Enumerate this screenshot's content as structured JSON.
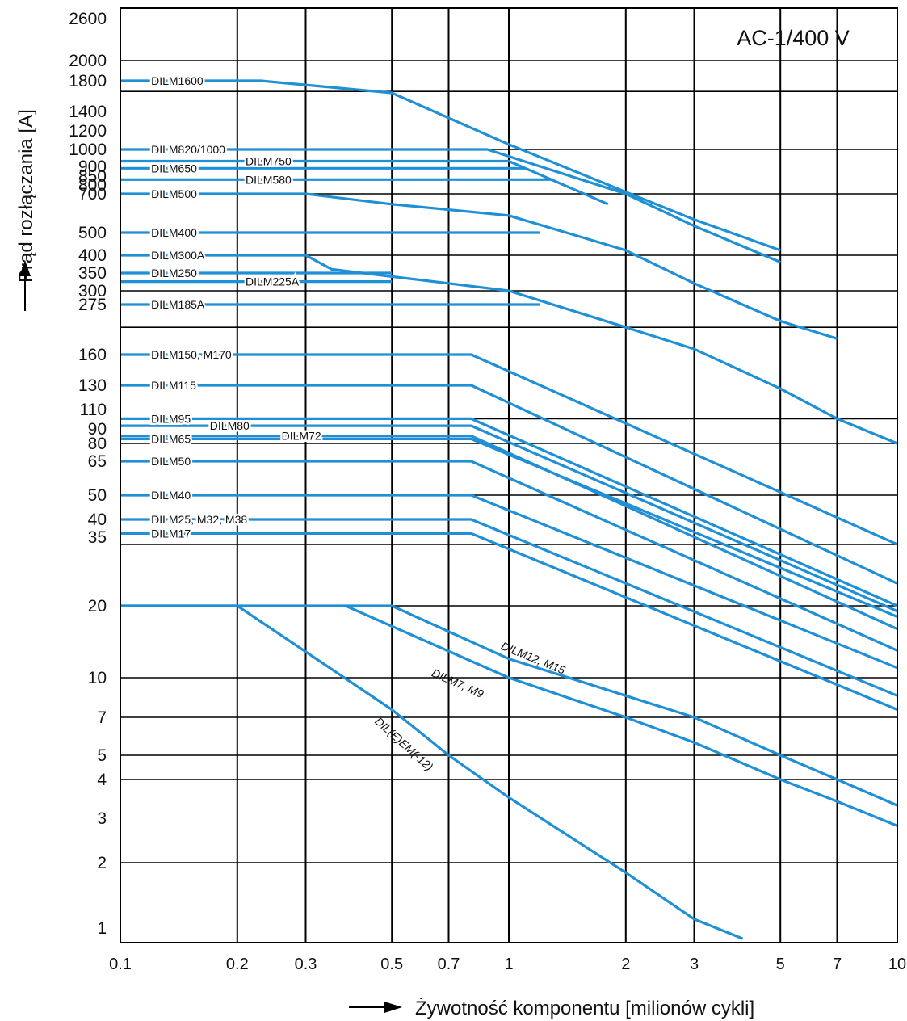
{
  "chart_data": {
    "type": "line",
    "title": "AC-1/400 V",
    "xlabel": "Żywotność komponentu [milionów cykli]",
    "ylabel": "Prąd rozłączania [A]",
    "x_scale": "log",
    "xlim": [
      0.1,
      10
    ],
    "x_ticks": [
      {
        "v": 0.1,
        "label": "0.1"
      },
      {
        "v": 0.2,
        "label": "0.2"
      },
      {
        "v": 0.3,
        "label": "0.3"
      },
      {
        "v": 0.5,
        "label": "0.5"
      },
      {
        "v": 0.7,
        "label": "0.7"
      },
      {
        "v": 1,
        "label": "1"
      },
      {
        "v": 2,
        "label": "2"
      },
      {
        "v": 3,
        "label": "3"
      },
      {
        "v": 5,
        "label": "5"
      },
      {
        "v": 7,
        "label": "7"
      },
      {
        "v": 10,
        "label": "10"
      }
    ],
    "y_ticks": [
      "1",
      "2",
      "3",
      "4",
      "5",
      "7",
      "10",
      "20",
      "35",
      "40",
      "50",
      "65",
      "80",
      "90",
      "110",
      "130",
      "160",
      "275",
      "300",
      "350",
      "400",
      "500",
      "700",
      "800",
      "850",
      "900",
      "1000",
      "1200",
      "1400",
      "1800",
      "2000",
      "2600"
    ],
    "grid": true,
    "colors": {
      "series": "#1f8fd6",
      "grid": "#000000",
      "text": "#111111"
    },
    "series": [
      {
        "name": "DILM1600",
        "x": [
          0.1,
          0.23,
          0.5,
          1,
          2,
          3,
          5
        ],
        "y": [
          1800,
          1800,
          1630,
          1050,
          720,
          560,
          420
        ],
        "label_x": 0.12
      },
      {
        "name": "DILM820/1000",
        "x": [
          0.1,
          0.88,
          2,
          3,
          5
        ],
        "y": [
          1000,
          1000,
          700,
          530,
          380
        ],
        "label_x": 0.12
      },
      {
        "name": "DILM750",
        "x": [
          0.1,
          1,
          1.8
        ],
        "y": [
          930,
          930,
          640
        ],
        "label_x": 0.21
      },
      {
        "name": "DILM650",
        "x": [
          0.1,
          1.1
        ],
        "y": [
          890,
          890
        ],
        "label_x": 0.12
      },
      {
        "name": "DILM580",
        "x": [
          0.1,
          1.3
        ],
        "y": [
          830,
          830
        ],
        "label_x": 0.21
      },
      {
        "name": "DILM500",
        "x": [
          0.1,
          0.3,
          0.5,
          1,
          2,
          3,
          5,
          7
        ],
        "y": [
          700,
          700,
          640,
          580,
          420,
          320,
          230,
          190
        ],
        "label_x": 0.12
      },
      {
        "name": "DILM400",
        "x": [
          0.1,
          1.2
        ],
        "y": [
          500,
          500
        ],
        "label_x": 0.12
      },
      {
        "name": "DILM300A",
        "x": [
          0.1,
          0.3,
          0.35,
          0.7,
          1,
          2,
          3,
          5,
          7,
          10
        ],
        "y": [
          400,
          400,
          360,
          320,
          300,
          215,
          170,
          127,
          100,
          80
        ],
        "label_x": 0.12
      },
      {
        "name": "DILM250",
        "x": [
          0.1,
          0.5
        ],
        "y": [
          350,
          350
        ],
        "label_x": 0.12
      },
      {
        "name": "DILM225A",
        "x": [
          0.1,
          0.5
        ],
        "y": [
          325,
          325
        ],
        "label_x": 0.21
      },
      {
        "name": "DILM185A",
        "x": [
          0.1,
          1.2
        ],
        "y": [
          275,
          275
        ],
        "label_x": 0.12
      },
      {
        "name": "DILM150, M170",
        "x": [
          0.1,
          0.8,
          10
        ],
        "y": [
          160,
          160,
          33
        ],
        "label_x": 0.12
      },
      {
        "name": "DILM115",
        "x": [
          0.1,
          0.8,
          10
        ],
        "y": [
          130,
          130,
          24
        ],
        "label_x": 0.12
      },
      {
        "name": "DILM95",
        "x": [
          0.1,
          0.8,
          10
        ],
        "y": [
          100,
          100,
          20
        ],
        "label_x": 0.12
      },
      {
        "name": "DILM80",
        "x": [
          0.1,
          0.8,
          10
        ],
        "y": [
          93,
          93,
          19
        ],
        "label_x": 0.17
      },
      {
        "name": "DILM72",
        "x": [
          0.1,
          0.8,
          10
        ],
        "y": [
          85,
          85,
          16
        ],
        "label_x": 0.26
      },
      {
        "name": "DILM65",
        "x": [
          0.1,
          0.8,
          10
        ],
        "y": [
          83,
          83,
          18
        ],
        "label_x": 0.12
      },
      {
        "name": "DILM50",
        "x": [
          0.1,
          0.8,
          10
        ],
        "y": [
          65,
          65,
          13
        ],
        "label_x": 0.12
      },
      {
        "name": "DILM40",
        "x": [
          0.1,
          0.8,
          10
        ],
        "y": [
          50,
          50,
          11
        ],
        "label_x": 0.12
      },
      {
        "name": "DILM25, M32, M38",
        "x": [
          0.1,
          0.8,
          10
        ],
        "y": [
          40,
          40,
          8.5
        ],
        "label_x": 0.12
      },
      {
        "name": "DILM17",
        "x": [
          0.1,
          0.8,
          10
        ],
        "y": [
          36,
          36,
          7.5
        ],
        "label_x": 0.12
      },
      {
        "name": "DILM12, M15",
        "x": [
          0.1,
          0.5,
          1,
          2,
          3,
          5,
          7,
          10
        ],
        "y": [
          20,
          20,
          12,
          8.5,
          7,
          5,
          4,
          3.3
        ],
        "label_x": 0.95,
        "label_y": 13.2
      },
      {
        "name": "DILM7, M9",
        "x": [
          0.38,
          1,
          2,
          3,
          5,
          7,
          10
        ],
        "y": [
          20,
          10,
          7,
          5.6,
          4,
          3.4,
          2.8
        ],
        "label_x": 0.63,
        "label_y": 10.2
      },
      {
        "name": "DIL(E)EM(-12)",
        "x": [
          0.1,
          0.2,
          0.5,
          0.7,
          1,
          2,
          3,
          4
        ],
        "y": [
          20,
          20,
          7.5,
          5,
          3.5,
          1.8,
          1.1,
          0.85
        ],
        "label_x": 0.45,
        "label_y": 6.7
      }
    ]
  },
  "axis": {
    "x_title": "Żywotność komponentu [milionów cykli]",
    "y_title": "Prąd rozłączania [A]",
    "box_title": "AC-1/400 V"
  }
}
